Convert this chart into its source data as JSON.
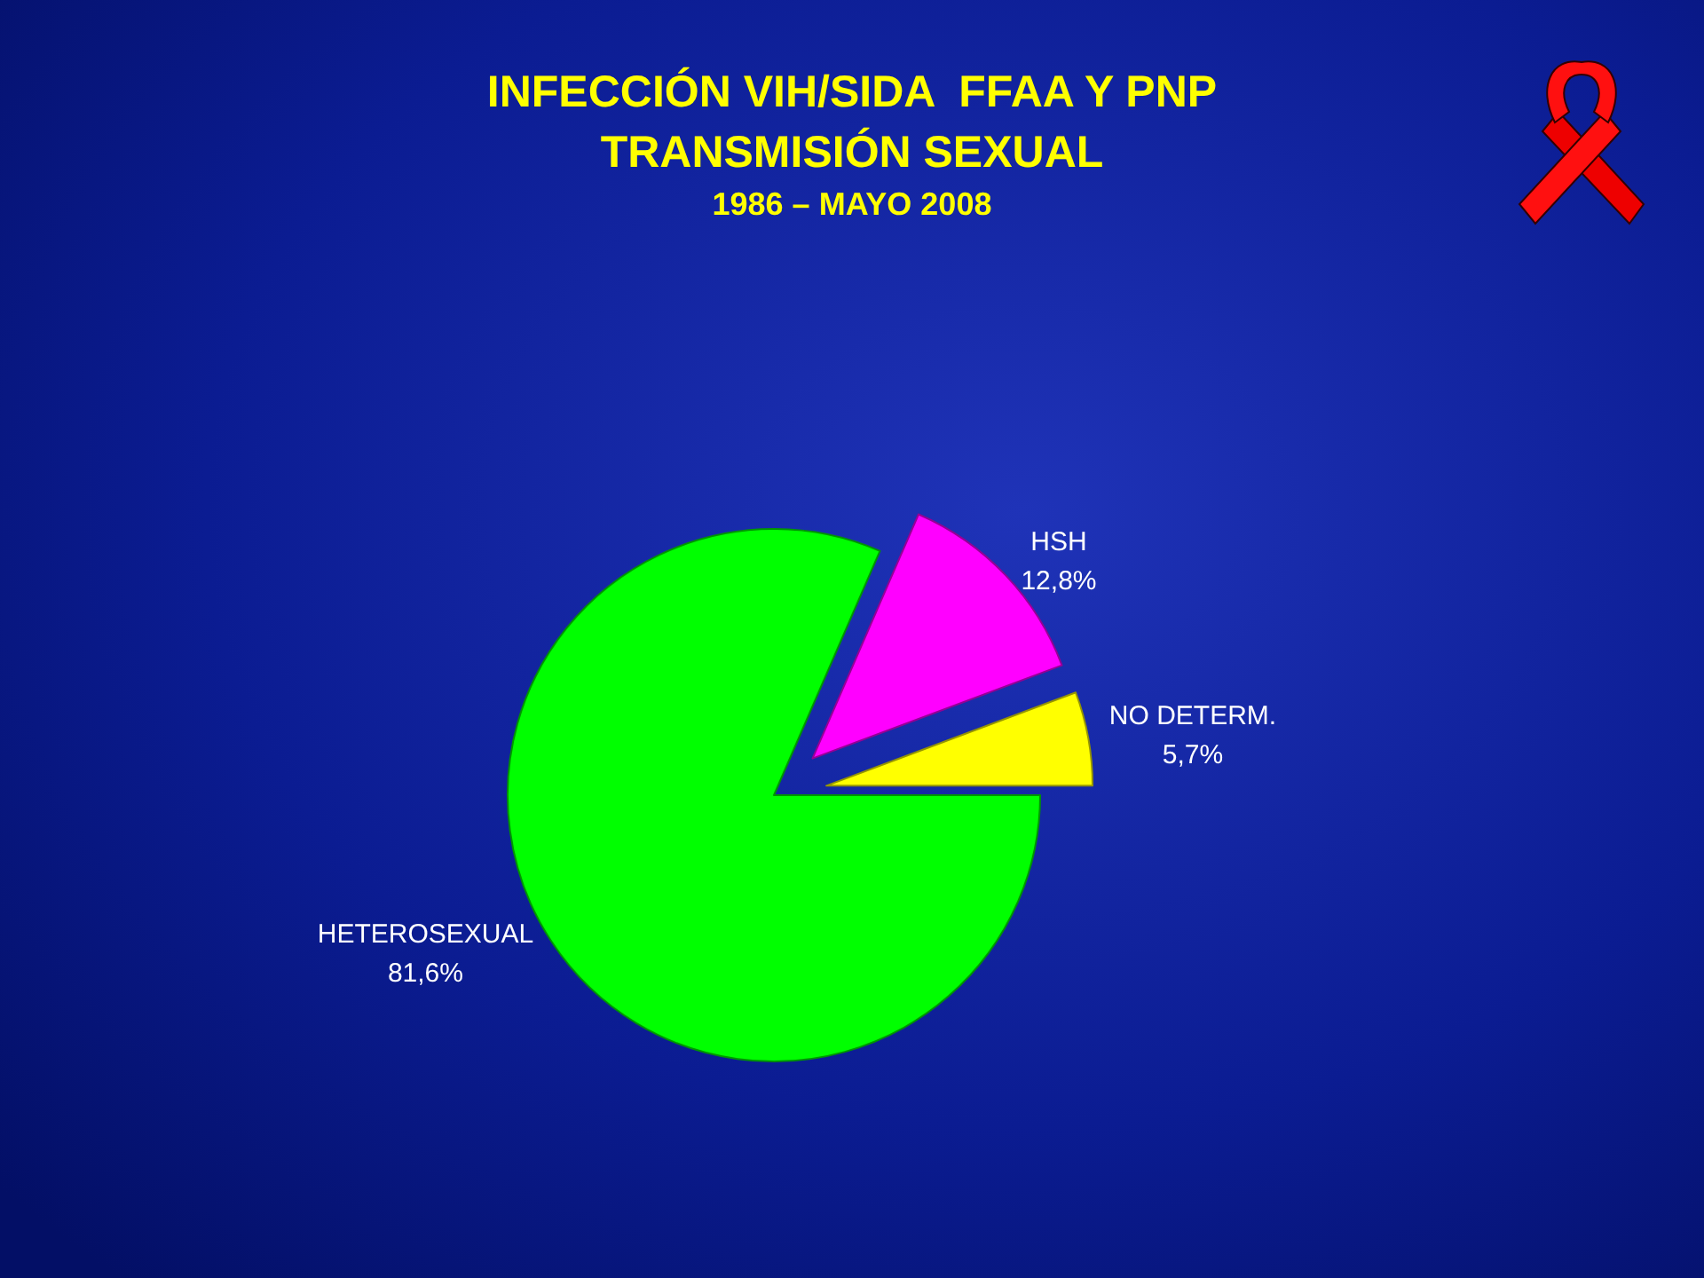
{
  "chart_data": {
    "type": "pie",
    "title": "INFECCIÓN VIH/SIDA  FFAA Y PNP\nTRANSMISIÓN SEXUAL",
    "subtitle": "1986 – MAYO 2008",
    "categories": [
      "HETEROSEXUAL",
      "HSH",
      "NO DETERM."
    ],
    "values": [
      81.6,
      12.8,
      5.7
    ],
    "colors": [
      "#00ff00",
      "#ff00ff",
      "#ffff00"
    ],
    "value_labels": [
      "81,6%",
      "12,8%",
      "5,7%"
    ]
  }
}
